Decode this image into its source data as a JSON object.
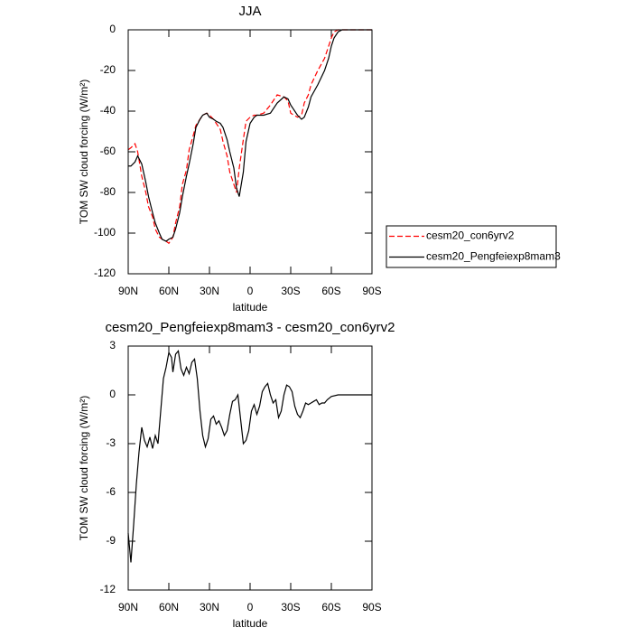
{
  "chart_data": [
    {
      "type": "line",
      "title": "JJA",
      "xlabel": "latitude",
      "ylabel": "TOM SW cloud forcing (W/m²)",
      "x": [
        90,
        88,
        85,
        83,
        80,
        77,
        75,
        72,
        70,
        67,
        65,
        62,
        60,
        57,
        55,
        52,
        50,
        47,
        45,
        42,
        40,
        37,
        35,
        32,
        30,
        27,
        25,
        22,
        20,
        17,
        15,
        12,
        10,
        8,
        5,
        3,
        0,
        -3,
        -5,
        -10,
        -15,
        -20,
        -25,
        -28,
        -30,
        -35,
        -38,
        -40,
        -43,
        -45,
        -50,
        -55,
        -58,
        -60,
        -62,
        -65,
        -68,
        -70,
        -80,
        -90
      ],
      "xlim": [
        90,
        -90
      ],
      "xticks": [
        {
          "value": 90,
          "label": "90N"
        },
        {
          "value": 60,
          "label": "60N"
        },
        {
          "value": 30,
          "label": "30N"
        },
        0,
        {
          "value": -30,
          "label": "30S"
        },
        {
          "value": -60,
          "label": "60S"
        },
        {
          "value": -90,
          "label": "90S"
        }
      ],
      "ylim": [
        -120,
        0
      ],
      "yticks": [
        0,
        -20,
        -40,
        -60,
        -80,
        -100,
        -120
      ],
      "legend": "right",
      "series": [
        {
          "name": "cesm20_con6yrv2",
          "color": "#ff0000",
          "line_style": "dashed",
          "values": [
            -59,
            -58,
            -56,
            -60,
            -72,
            -80,
            -87,
            -92,
            -98,
            -102,
            -103,
            -104,
            -105,
            -102,
            -95,
            -87,
            -76,
            -69,
            -59,
            -52,
            -47,
            -44,
            -42,
            -41,
            -42,
            -44,
            -46,
            -49,
            -55,
            -62,
            -70,
            -76,
            -80,
            -68,
            -54,
            -45,
            -43,
            -42,
            -42,
            -41,
            -37,
            -32,
            -33,
            -35,
            -41,
            -43,
            -42,
            -36,
            -32,
            -27,
            -20,
            -14,
            -8,
            -4,
            -1,
            0,
            0,
            0,
            0,
            0
          ]
        },
        {
          "name": "cesm20_Pengfeiexp8mam3",
          "color": "#000000",
          "line_style": "solid",
          "values": [
            -67,
            -67,
            -65,
            -62,
            -66,
            -75,
            -82,
            -90,
            -95,
            -100,
            -103,
            -104,
            -103,
            -102,
            -98,
            -90,
            -82,
            -72,
            -66,
            -56,
            -48,
            -44,
            -42,
            -41,
            -43,
            -44,
            -45,
            -46,
            -48,
            -54,
            -60,
            -68,
            -78,
            -82,
            -70,
            -55,
            -46,
            -43,
            -42,
            -42,
            -41,
            -36,
            -33,
            -34,
            -37,
            -42,
            -44,
            -43,
            -38,
            -33,
            -27,
            -20,
            -14,
            -8,
            -4,
            -1,
            0,
            0,
            0,
            0
          ]
        }
      ]
    },
    {
      "type": "line",
      "title": "cesm20_Pengfeiexp8mam3 - cesm20_con6yrv2",
      "xlabel": "latitude",
      "ylabel": "TOM SW cloud forcing (W/m²)",
      "x": [
        90,
        89,
        88,
        86,
        84,
        82,
        80,
        78,
        76,
        74,
        72,
        70,
        68,
        66,
        64,
        62,
        60,
        58,
        57,
        55,
        53,
        51,
        49,
        47,
        45,
        43,
        41,
        39,
        37,
        35,
        33,
        31,
        29,
        27,
        25,
        23,
        21,
        19,
        17,
        15,
        13,
        11,
        9,
        7,
        5,
        3,
        1,
        -1,
        -3,
        -5,
        -7,
        -9,
        -11,
        -13,
        -15,
        -17,
        -19,
        -21,
        -23,
        -25,
        -27,
        -29,
        -31,
        -33,
        -35,
        -37,
        -39,
        -41,
        -43,
        -45,
        -47,
        -49,
        -51,
        -53,
        -55,
        -57,
        -60,
        -65,
        -70,
        -80,
        -90
      ],
      "xlim": [
        90,
        -90
      ],
      "xticks": [
        {
          "value": 90,
          "label": "90N"
        },
        {
          "value": 60,
          "label": "60N"
        },
        {
          "value": 30,
          "label": "30N"
        },
        0,
        {
          "value": -30,
          "label": "30S"
        },
        {
          "value": -60,
          "label": "60S"
        },
        {
          "value": -90,
          "label": "90S"
        }
      ],
      "ylim": [
        -12,
        3
      ],
      "yticks": [
        3,
        0,
        -3,
        -6,
        -9,
        -12
      ],
      "series": [
        {
          "color": "#000000",
          "line_style": "solid",
          "values": [
            -8.5,
            -9.4,
            -10.3,
            -8,
            -5.5,
            -3.5,
            -2,
            -2.8,
            -3.2,
            -2.6,
            -3.3,
            -2.5,
            -3.0,
            -1,
            1,
            1.7,
            2.6,
            2.3,
            1.4,
            2.5,
            2.7,
            1.6,
            1.2,
            1.7,
            1.3,
            2.0,
            2.2,
            1.0,
            -1.0,
            -2.5,
            -3.2,
            -2.7,
            -1.5,
            -1.3,
            -1.8,
            -1.6,
            -2.0,
            -2.5,
            -2.2,
            -1.2,
            -0.4,
            -0.3,
            0,
            -1.5,
            -3.0,
            -2.8,
            -2.2,
            -1.0,
            -0.6,
            -1.2,
            -0.7,
            0.2,
            0.5,
            0.7,
            0,
            -0.5,
            -0.3,
            -1.4,
            -1.0,
            0,
            0.6,
            0.5,
            0.2,
            -0.7,
            -1.2,
            -1.4,
            -1.0,
            -0.5,
            -0.6,
            -0.5,
            -0.4,
            -0.3,
            -0.6,
            -0.5,
            -0.5,
            -0.3,
            -0.1,
            0,
            0,
            0,
            0
          ]
        }
      ]
    }
  ]
}
